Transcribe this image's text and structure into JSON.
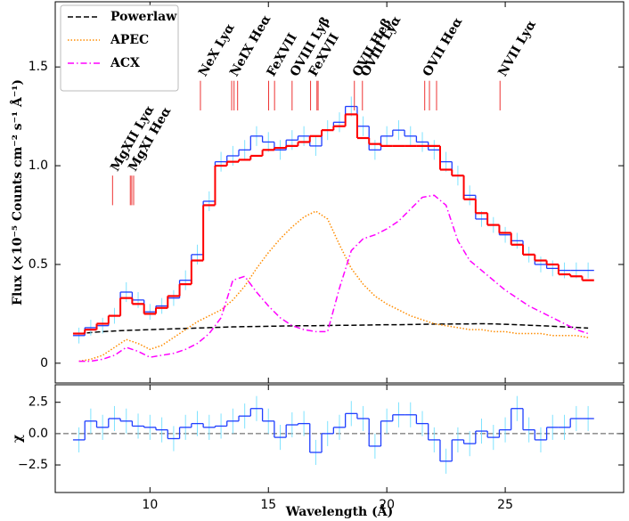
{
  "chart_data": [
    {
      "type": "step",
      "ylabel": "Flux (×10⁻⁵ Counts cm⁻² s⁻¹ Å⁻¹)",
      "xlim": [
        6,
        30
      ],
      "xticks": [
        10,
        15,
        20,
        25
      ],
      "ylim": [
        -0.1,
        1.83
      ],
      "yticks": [
        0,
        0.5,
        {
          "value": 1,
          "label": "1.0"
        },
        1.5
      ],
      "legend": "upper left",
      "x": [
        7,
        7.5,
        8,
        8.5,
        9,
        9.5,
        10,
        10.5,
        11,
        11.5,
        12,
        12.5,
        13,
        13.5,
        14,
        14.5,
        15,
        15.5,
        16,
        16.5,
        17,
        17.5,
        18,
        18.5,
        19,
        19.5,
        20,
        20.5,
        21,
        21.5,
        22,
        22.5,
        23,
        23.5,
        24,
        24.5,
        25,
        25.5,
        26,
        26.5,
        27,
        27.5,
        28,
        28.5
      ],
      "series": [
        {
          "name": "Powerlaw",
          "color": "#000000",
          "style": "dashed",
          "values": [
            0.15,
            0.155,
            0.16,
            0.163,
            0.166,
            0.168,
            0.17,
            0.172,
            0.174,
            0.176,
            0.178,
            0.18,
            0.182,
            0.184,
            0.185,
            0.186,
            0.187,
            0.188,
            0.189,
            0.19,
            0.19,
            0.191,
            0.192,
            0.192,
            0.193,
            0.194,
            0.195,
            0.195,
            0.196,
            0.197,
            0.198,
            0.198,
            0.199,
            0.199,
            0.2,
            0.199,
            0.197,
            0.195,
            0.192,
            0.19,
            0.187,
            0.184,
            0.181,
            0.178
          ]
        },
        {
          "name": "APEC",
          "color": "#ff8c00",
          "style": "dotted",
          "values": [
            0.01,
            0.02,
            0.04,
            0.08,
            0.12,
            0.1,
            0.07,
            0.09,
            0.13,
            0.17,
            0.21,
            0.24,
            0.27,
            0.32,
            0.39,
            0.48,
            0.56,
            0.63,
            0.69,
            0.74,
            0.77,
            0.73,
            0.6,
            0.48,
            0.4,
            0.34,
            0.3,
            0.27,
            0.24,
            0.22,
            0.2,
            0.19,
            0.18,
            0.17,
            0.17,
            0.16,
            0.16,
            0.15,
            0.15,
            0.15,
            0.14,
            0.14,
            0.14,
            0.13
          ]
        },
        {
          "name": "ACX",
          "color": "#ff00ff",
          "style": "dashdot",
          "values": [
            0.01,
            0.01,
            0.02,
            0.04,
            0.08,
            0.06,
            0.03,
            0.04,
            0.05,
            0.07,
            0.1,
            0.15,
            0.23,
            0.42,
            0.44,
            0.36,
            0.29,
            0.23,
            0.19,
            0.17,
            0.16,
            0.16,
            0.38,
            0.57,
            0.63,
            0.65,
            0.68,
            0.72,
            0.78,
            0.84,
            0.85,
            0.8,
            0.62,
            0.52,
            0.47,
            0.42,
            0.37,
            0.33,
            0.29,
            0.26,
            0.23,
            0.2,
            0.17,
            0.15
          ]
        },
        {
          "color": "#1f3fff",
          "style": "step",
          "error_color": "#7fe3ff",
          "values": [
            0.14,
            0.18,
            0.19,
            0.24,
            0.36,
            0.32,
            0.26,
            0.29,
            0.33,
            0.42,
            0.55,
            0.82,
            1.02,
            1.05,
            1.08,
            1.15,
            1.12,
            1.08,
            1.13,
            1.15,
            1.1,
            1.18,
            1.22,
            1.3,
            1.2,
            1.08,
            1.15,
            1.18,
            1.15,
            1.12,
            1.08,
            1.02,
            0.95,
            0.85,
            0.73,
            0.7,
            0.65,
            0.62,
            0.55,
            0.5,
            0.48,
            0.47,
            0.47,
            0.47
          ],
          "errors": [
            0.04,
            0.04,
            0.04,
            0.04,
            0.05,
            0.04,
            0.04,
            0.04,
            0.04,
            0.05,
            0.05,
            0.05,
            0.05,
            0.05,
            0.05,
            0.05,
            0.05,
            0.05,
            0.05,
            0.05,
            0.05,
            0.05,
            0.05,
            0.05,
            0.05,
            0.05,
            0.05,
            0.05,
            0.05,
            0.05,
            0.05,
            0.05,
            0.05,
            0.05,
            0.04,
            0.04,
            0.04,
            0.04,
            0.04,
            0.04,
            0.04,
            0.04,
            0.04,
            0.04
          ]
        },
        {
          "color": "#ff0000",
          "style": "step",
          "values": [
            0.15,
            0.17,
            0.2,
            0.24,
            0.33,
            0.3,
            0.25,
            0.28,
            0.34,
            0.4,
            0.52,
            0.8,
            1.0,
            1.02,
            1.03,
            1.05,
            1.08,
            1.09,
            1.1,
            1.12,
            1.15,
            1.18,
            1.2,
            1.26,
            1.14,
            1.11,
            1.1,
            1.1,
            1.1,
            1.1,
            1.1,
            0.98,
            0.95,
            0.83,
            0.76,
            0.7,
            0.66,
            0.6,
            0.55,
            0.52,
            0.5,
            0.45,
            0.44,
            0.42
          ]
        }
      ],
      "lines": [
        {
          "label": "MgXII Lyα",
          "wavelengths": [
            8.42
          ],
          "y_range": [
            0.8,
            0.95
          ]
        },
        {
          "label": "MgXI Heα",
          "wavelengths": [
            9.17,
            9.23,
            9.31
          ],
          "y_range": [
            0.8,
            0.95
          ]
        },
        {
          "label": "NeX Lyα",
          "wavelengths": [
            12.13
          ],
          "y_range": [
            1.28,
            1.43
          ]
        },
        {
          "label": "NeIX Heα",
          "wavelengths": [
            13.45,
            13.55,
            13.7
          ],
          "y_range": [
            1.28,
            1.43
          ]
        },
        {
          "label": "FeXVII",
          "wavelengths": [
            15.01,
            15.26
          ],
          "y_range": [
            1.28,
            1.43
          ]
        },
        {
          "label": "OVIII Lyβ",
          "wavelengths": [
            16.0
          ],
          "y_range": [
            1.28,
            1.43
          ]
        },
        {
          "label": "FeXVII",
          "wavelengths": [
            16.78,
            17.05,
            17.1
          ],
          "y_range": [
            1.28,
            1.43
          ]
        },
        {
          "label": "OVII Heβ",
          "wavelengths": [
            18.63
          ],
          "y_range": [
            1.28,
            1.43
          ]
        },
        {
          "label": "OVIII Lyα",
          "wavelengths": [
            18.97
          ],
          "y_range": [
            1.28,
            1.43
          ]
        },
        {
          "label": "OVII Heα",
          "wavelengths": [
            21.6,
            21.8,
            22.1
          ],
          "y_range": [
            1.28,
            1.43
          ]
        },
        {
          "label": "NVII Lyα",
          "wavelengths": [
            24.78
          ],
          "y_range": [
            1.28,
            1.43
          ]
        }
      ]
    },
    {
      "type": "step",
      "ylabel": "χ",
      "xlabel": "Wavelength (Å)",
      "xlim": [
        6,
        30
      ],
      "xticks": [
        10,
        15,
        20,
        25
      ],
      "ylim": [
        -4.7,
        3.9
      ],
      "yticks": [
        {
          "value": -2.5,
          "label": "−2.5"
        },
        {
          "value": 0,
          "label": "0.0"
        },
        2.5
      ],
      "hline": 0,
      "x": [
        7,
        7.5,
        8,
        8.5,
        9,
        9.5,
        10,
        10.5,
        11,
        11.5,
        12,
        12.5,
        13,
        13.5,
        14,
        14.5,
        15,
        15.5,
        16,
        16.5,
        17,
        17.5,
        18,
        18.5,
        19,
        19.5,
        20,
        20.5,
        21,
        21.5,
        22,
        22.5,
        23,
        23.5,
        24,
        24.5,
        25,
        25.5,
        26,
        26.5,
        27,
        27.5,
        28,
        28.5
      ],
      "series": [
        {
          "color": "#1f3fff",
          "style": "step",
          "error_color": "#7fe3ff",
          "values": [
            -0.5,
            1.0,
            0.5,
            1.2,
            1.0,
            0.6,
            0.5,
            0.3,
            -0.4,
            0.5,
            0.8,
            0.5,
            0.6,
            1.0,
            1.4,
            2.0,
            1.0,
            -0.3,
            0.7,
            0.8,
            -1.5,
            0.0,
            0.5,
            1.6,
            1.2,
            -1.0,
            1.0,
            1.5,
            1.5,
            0.8,
            -0.5,
            -2.2,
            -0.5,
            -0.8,
            0.2,
            -0.3,
            0.3,
            2.0,
            0.3,
            -0.5,
            0.5,
            0.5,
            1.2,
            1.2
          ],
          "errors": [
            1,
            1,
            1,
            1,
            1,
            1,
            1,
            1,
            1,
            1,
            1,
            1,
            1,
            1,
            1,
            1,
            1,
            1,
            1,
            1,
            1,
            1,
            1,
            1,
            1,
            1,
            1,
            1,
            1,
            1,
            1,
            1,
            1,
            1,
            1,
            1,
            1,
            1,
            1,
            1,
            1,
            1,
            1,
            1
          ]
        }
      ]
    }
  ]
}
